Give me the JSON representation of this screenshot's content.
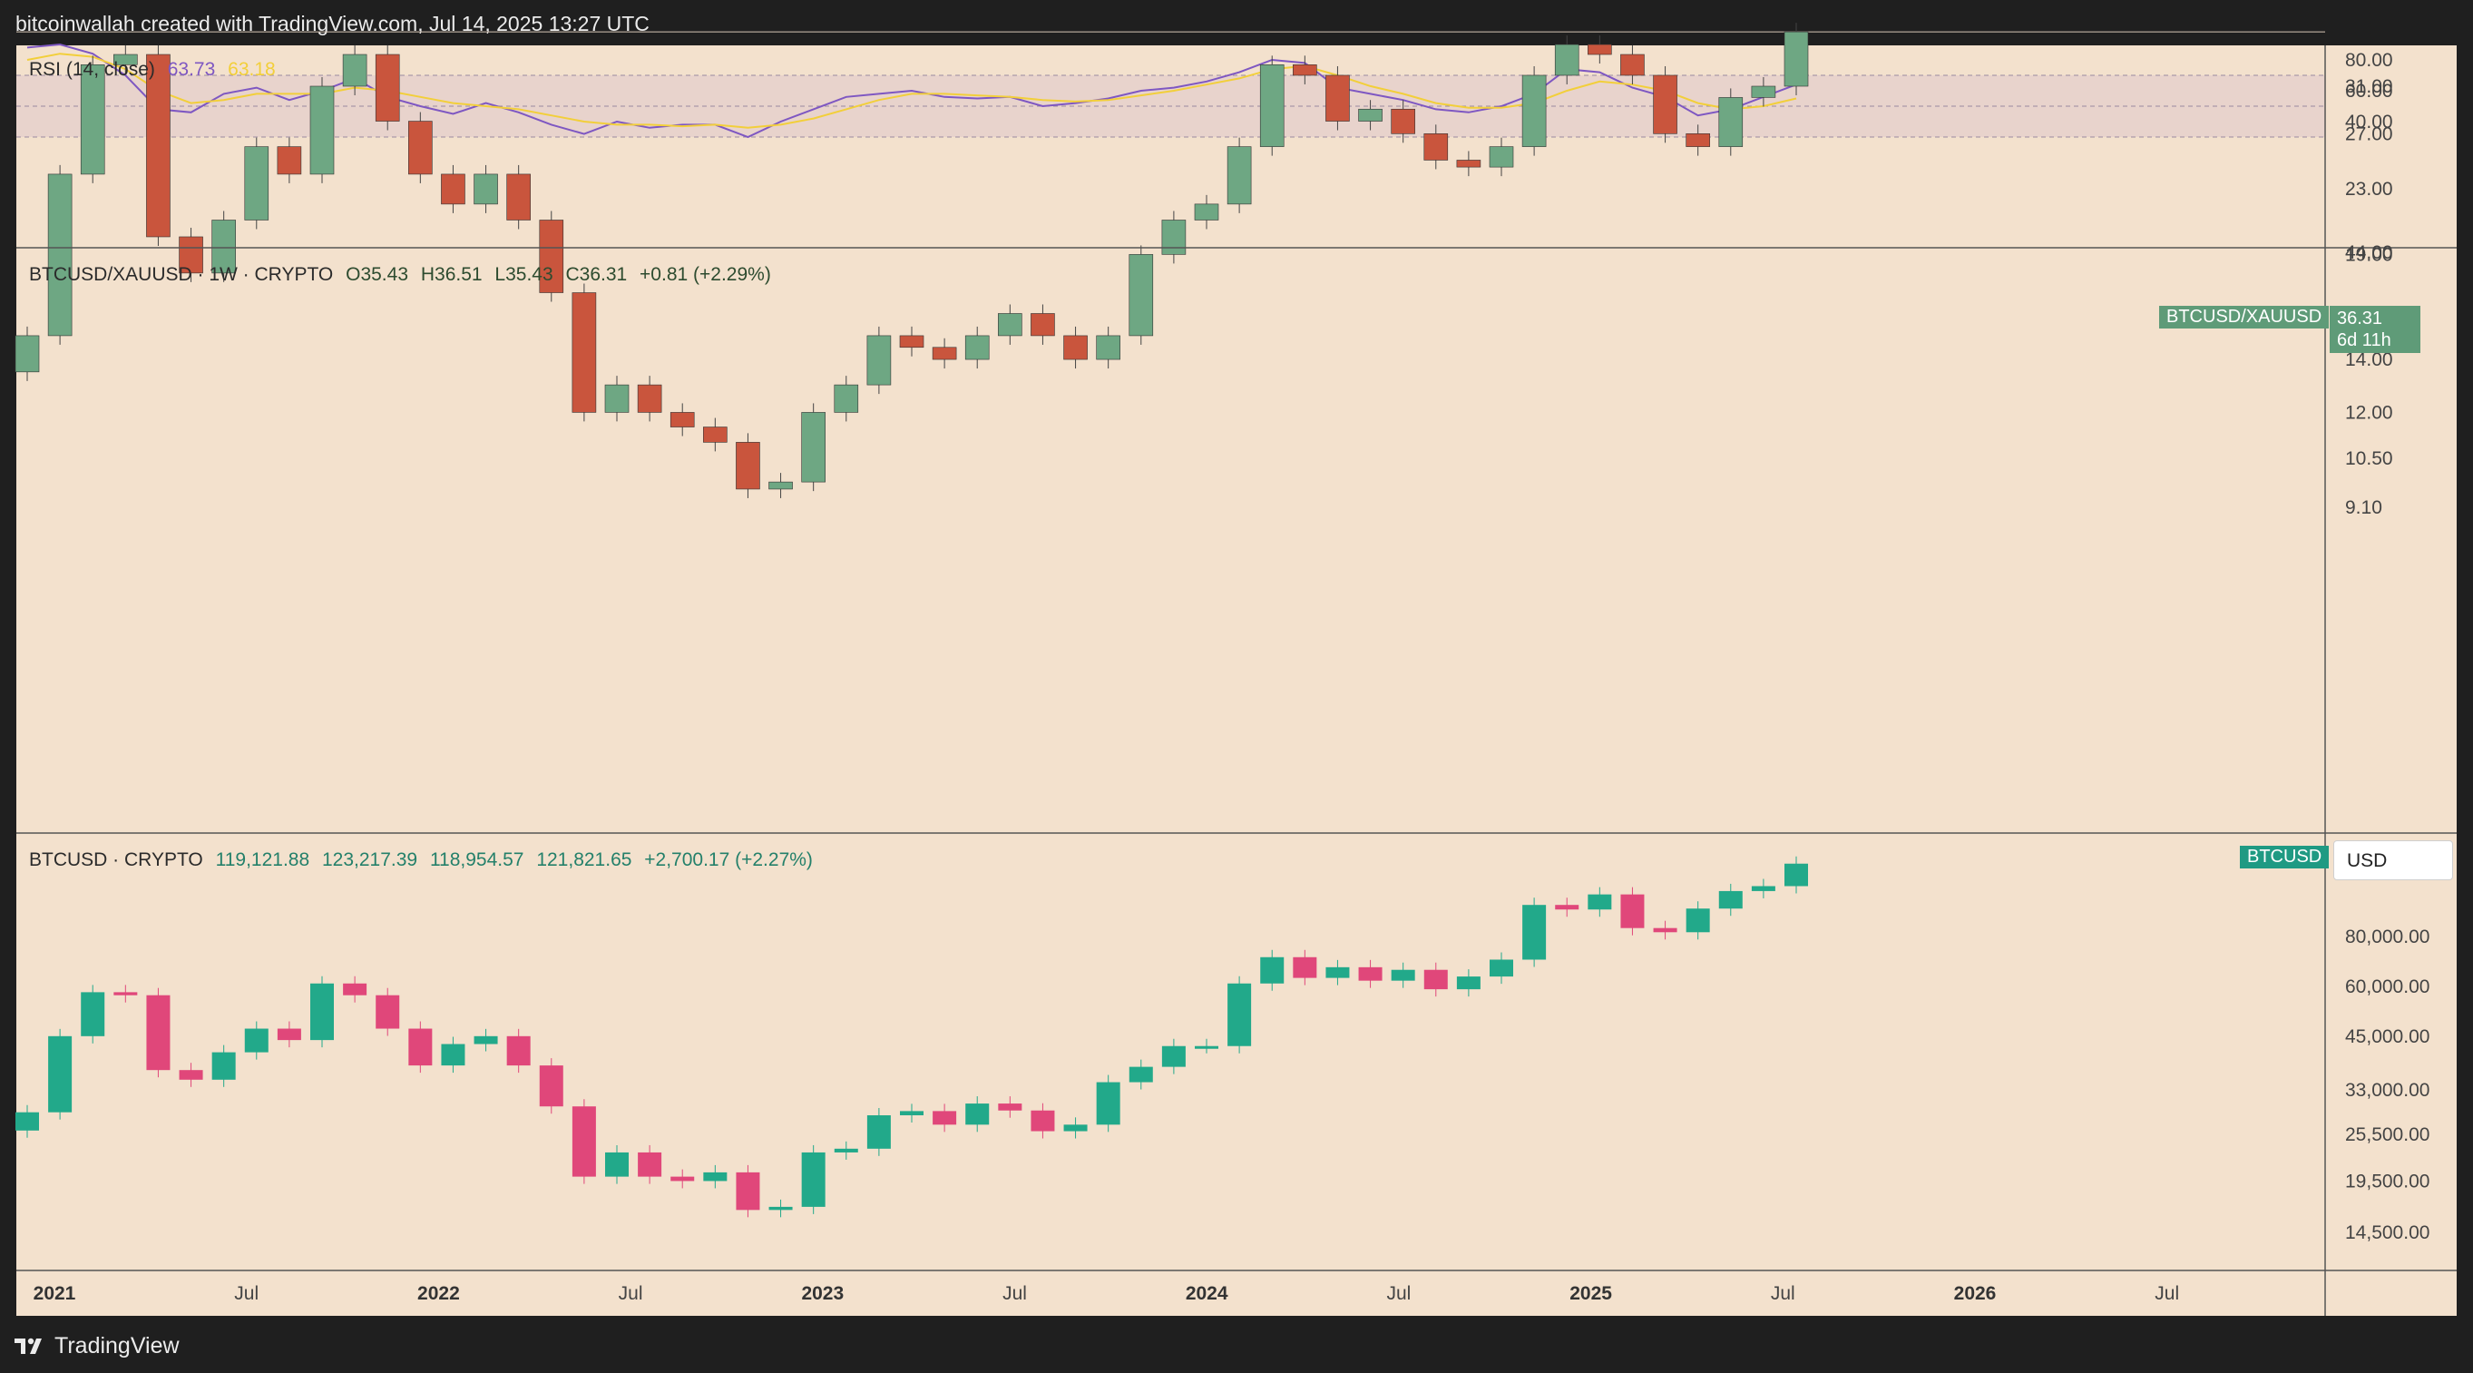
{
  "header": {
    "credit": "bitcoinwallah created with TradingView.com, Jul 14, 2025 13:27 UTC"
  },
  "colors": {
    "background": "#f3e1cd",
    "up_candle_ratio": "#6ea783",
    "down_candle_ratio": "#c9553d",
    "up_candle_btc": "#22a98a",
    "down_candle_btc": "#e0477a",
    "rsi_line": "#7e57c2",
    "rsi_ma_line": "#f2cf3a",
    "rsi_band": "#e8d3cc",
    "ratio_badge": "#5f9b78",
    "btc_badge": "#1f9a83"
  },
  "rsi_panel": {
    "label": "RSI (14, close)",
    "value": "63.73",
    "ma_value": "63.18",
    "ticks": [
      "80.00",
      "60.00",
      "40.00"
    ],
    "overbought": 70,
    "oversold": 30
  },
  "ratio_panel": {
    "symbol": "BTCUSD/XAUUSD · 1W · CRYPTO",
    "open": "O35.43",
    "high": "H36.51",
    "low": "L35.43",
    "close": "C36.31",
    "change": "+0.81 (+2.29%)",
    "badge_label": "BTCUSD/XAUUSD",
    "badge_price": "36.31",
    "badge_countdown": "6d 11h",
    "ticks": [
      "44.00",
      "31.00",
      "27.00",
      "23.00",
      "19.00",
      "16.00",
      "14.00",
      "12.00",
      "10.50",
      "9.10"
    ]
  },
  "btc_panel": {
    "symbol": "BTCUSD · CRYPTO",
    "open": "119,121.88",
    "high": "123,217.39",
    "low": "118,954.57",
    "close": "121,821.65",
    "change": "+2,700.17 (+2.27%)",
    "badge_label": "BTCUSD",
    "currency": "USD",
    "ticks": [
      "80,000.00",
      "60,000.00",
      "45,000.00",
      "33,000.00",
      "25,500.00",
      "19,500.00",
      "14,500.00"
    ]
  },
  "time_axis": [
    "2021",
    "Jul",
    "2022",
    "Jul",
    "2023",
    "Jul",
    "2024",
    "Jul",
    "2025",
    "Jul",
    "2026",
    "Jul"
  ],
  "footer": {
    "brand": "TradingView"
  },
  "chart_data": [
    {
      "type": "line",
      "title": "RSI (14, close)",
      "ylim": [
        20,
        95
      ],
      "x": [
        "2021-01",
        "2021-02",
        "2021-03",
        "2021-04",
        "2021-05",
        "2021-06",
        "2021-07",
        "2021-08",
        "2021-09",
        "2021-10",
        "2021-11",
        "2021-12",
        "2022-01",
        "2022-02",
        "2022-03",
        "2022-04",
        "2022-05",
        "2022-06",
        "2022-07",
        "2022-08",
        "2022-09",
        "2022-10",
        "2022-11",
        "2022-12",
        "2023-01",
        "2023-02",
        "2023-03",
        "2023-04",
        "2023-05",
        "2023-06",
        "2023-07",
        "2023-08",
        "2023-09",
        "2023-10",
        "2023-11",
        "2023-12",
        "2024-01",
        "2024-02",
        "2024-03",
        "2024-04",
        "2024-05",
        "2024-06",
        "2024-07",
        "2024-08",
        "2024-09",
        "2024-10",
        "2024-11",
        "2024-12",
        "2025-01",
        "2025-02",
        "2025-03",
        "2025-04",
        "2025-05",
        "2025-06",
        "2025-07"
      ],
      "series": [
        {
          "name": "RSI",
          "values": [
            88,
            90,
            84,
            70,
            48,
            46,
            58,
            62,
            54,
            60,
            68,
            56,
            50,
            45,
            52,
            46,
            38,
            32,
            40,
            36,
            38,
            38,
            30,
            40,
            48,
            56,
            58,
            60,
            56,
            55,
            56,
            50,
            52,
            55,
            60,
            62,
            66,
            72,
            80,
            78,
            62,
            58,
            54,
            48,
            46,
            50,
            58,
            74,
            72,
            62,
            56,
            44,
            48,
            56,
            64
          ]
        },
        {
          "name": "RSI MA",
          "values": [
            80,
            84,
            82,
            74,
            60,
            52,
            54,
            58,
            58,
            58,
            62,
            60,
            56,
            52,
            50,
            48,
            44,
            40,
            38,
            38,
            37,
            38,
            36,
            38,
            42,
            48,
            54,
            58,
            58,
            57,
            56,
            54,
            53,
            54,
            57,
            60,
            64,
            68,
            74,
            76,
            70,
            63,
            58,
            52,
            49,
            49,
            52,
            60,
            66,
            64,
            60,
            52,
            48,
            50,
            55
          ]
        }
      ]
    },
    {
      "type": "line",
      "title": "BTCUSD/XAUUSD · 1W · CRYPTO",
      "scale": "log",
      "ylim": [
        8.5,
        46
      ],
      "x": [
        "2021-01",
        "2021-02",
        "2021-03",
        "2021-04",
        "2021-05",
        "2021-06",
        "2021-07",
        "2021-08",
        "2021-09",
        "2021-10",
        "2021-11",
        "2021-12",
        "2022-01",
        "2022-02",
        "2022-03",
        "2022-04",
        "2022-05",
        "2022-06",
        "2022-07",
        "2022-08",
        "2022-09",
        "2022-10",
        "2022-11",
        "2022-12",
        "2023-01",
        "2023-02",
        "2023-03",
        "2023-04",
        "2023-05",
        "2023-06",
        "2023-07",
        "2023-08",
        "2023-09",
        "2023-10",
        "2023-11",
        "2023-12",
        "2024-01",
        "2024-02",
        "2024-03",
        "2024-04",
        "2024-05",
        "2024-06",
        "2024-07",
        "2024-08",
        "2024-09",
        "2024-10",
        "2024-11",
        "2024-12",
        "2025-01",
        "2025-02",
        "2025-03",
        "2025-04",
        "2025-05",
        "2025-06",
        "2025-07"
      ],
      "series": [
        {
          "name": "BTCUSD/XAUUSD",
          "values": [
            15,
            24,
            33,
            34,
            20,
            18,
            21,
            26,
            24,
            31,
            34,
            28,
            24,
            22,
            24,
            21,
            17,
            12,
            13,
            12,
            11.5,
            11,
            9.6,
            9.8,
            12,
            13,
            15,
            14.5,
            14,
            15,
            16,
            15,
            14,
            15,
            19,
            21,
            22,
            26,
            33,
            32,
            28,
            29,
            27,
            25,
            24.5,
            26,
            32,
            35,
            34,
            32,
            27,
            26,
            30,
            31,
            36.31
          ]
        }
      ]
    },
    {
      "type": "line",
      "title": "BTCUSD · CRYPTO",
      "scale": "log",
      "ylim": [
        13000,
        135000
      ],
      "x": [
        "2021-01",
        "2021-02",
        "2021-03",
        "2021-04",
        "2021-05",
        "2021-06",
        "2021-07",
        "2021-08",
        "2021-09",
        "2021-10",
        "2021-11",
        "2021-12",
        "2022-01",
        "2022-02",
        "2022-03",
        "2022-04",
        "2022-05",
        "2022-06",
        "2022-07",
        "2022-08",
        "2022-09",
        "2022-10",
        "2022-11",
        "2022-12",
        "2023-01",
        "2023-02",
        "2023-03",
        "2023-04",
        "2023-05",
        "2023-06",
        "2023-07",
        "2023-08",
        "2023-09",
        "2023-10",
        "2023-11",
        "2023-12",
        "2024-01",
        "2024-02",
        "2024-03",
        "2024-04",
        "2024-05",
        "2024-06",
        "2024-07",
        "2024-08",
        "2024-09",
        "2024-10",
        "2024-11",
        "2024-12",
        "2025-01",
        "2025-02",
        "2025-03",
        "2025-04",
        "2025-05",
        "2025-06",
        "2025-07"
      ],
      "series": [
        {
          "name": "BTCUSD",
          "values": [
            29000,
            45000,
            58000,
            57000,
            37000,
            35000,
            41000,
            47000,
            44000,
            61000,
            57000,
            47000,
            38000,
            43000,
            45000,
            38000,
            30000,
            20000,
            23000,
            20000,
            19500,
            20500,
            16500,
            16800,
            23000,
            23500,
            28500,
            29200,
            27000,
            30500,
            29300,
            26000,
            27000,
            34500,
            37700,
            42500,
            42500,
            61000,
            71000,
            63000,
            67000,
            62000,
            66000,
            59000,
            63500,
            70000,
            96000,
            93500,
            102000,
            84000,
            82000,
            94000,
            104000,
            107000,
            121821.65
          ]
        }
      ]
    }
  ]
}
